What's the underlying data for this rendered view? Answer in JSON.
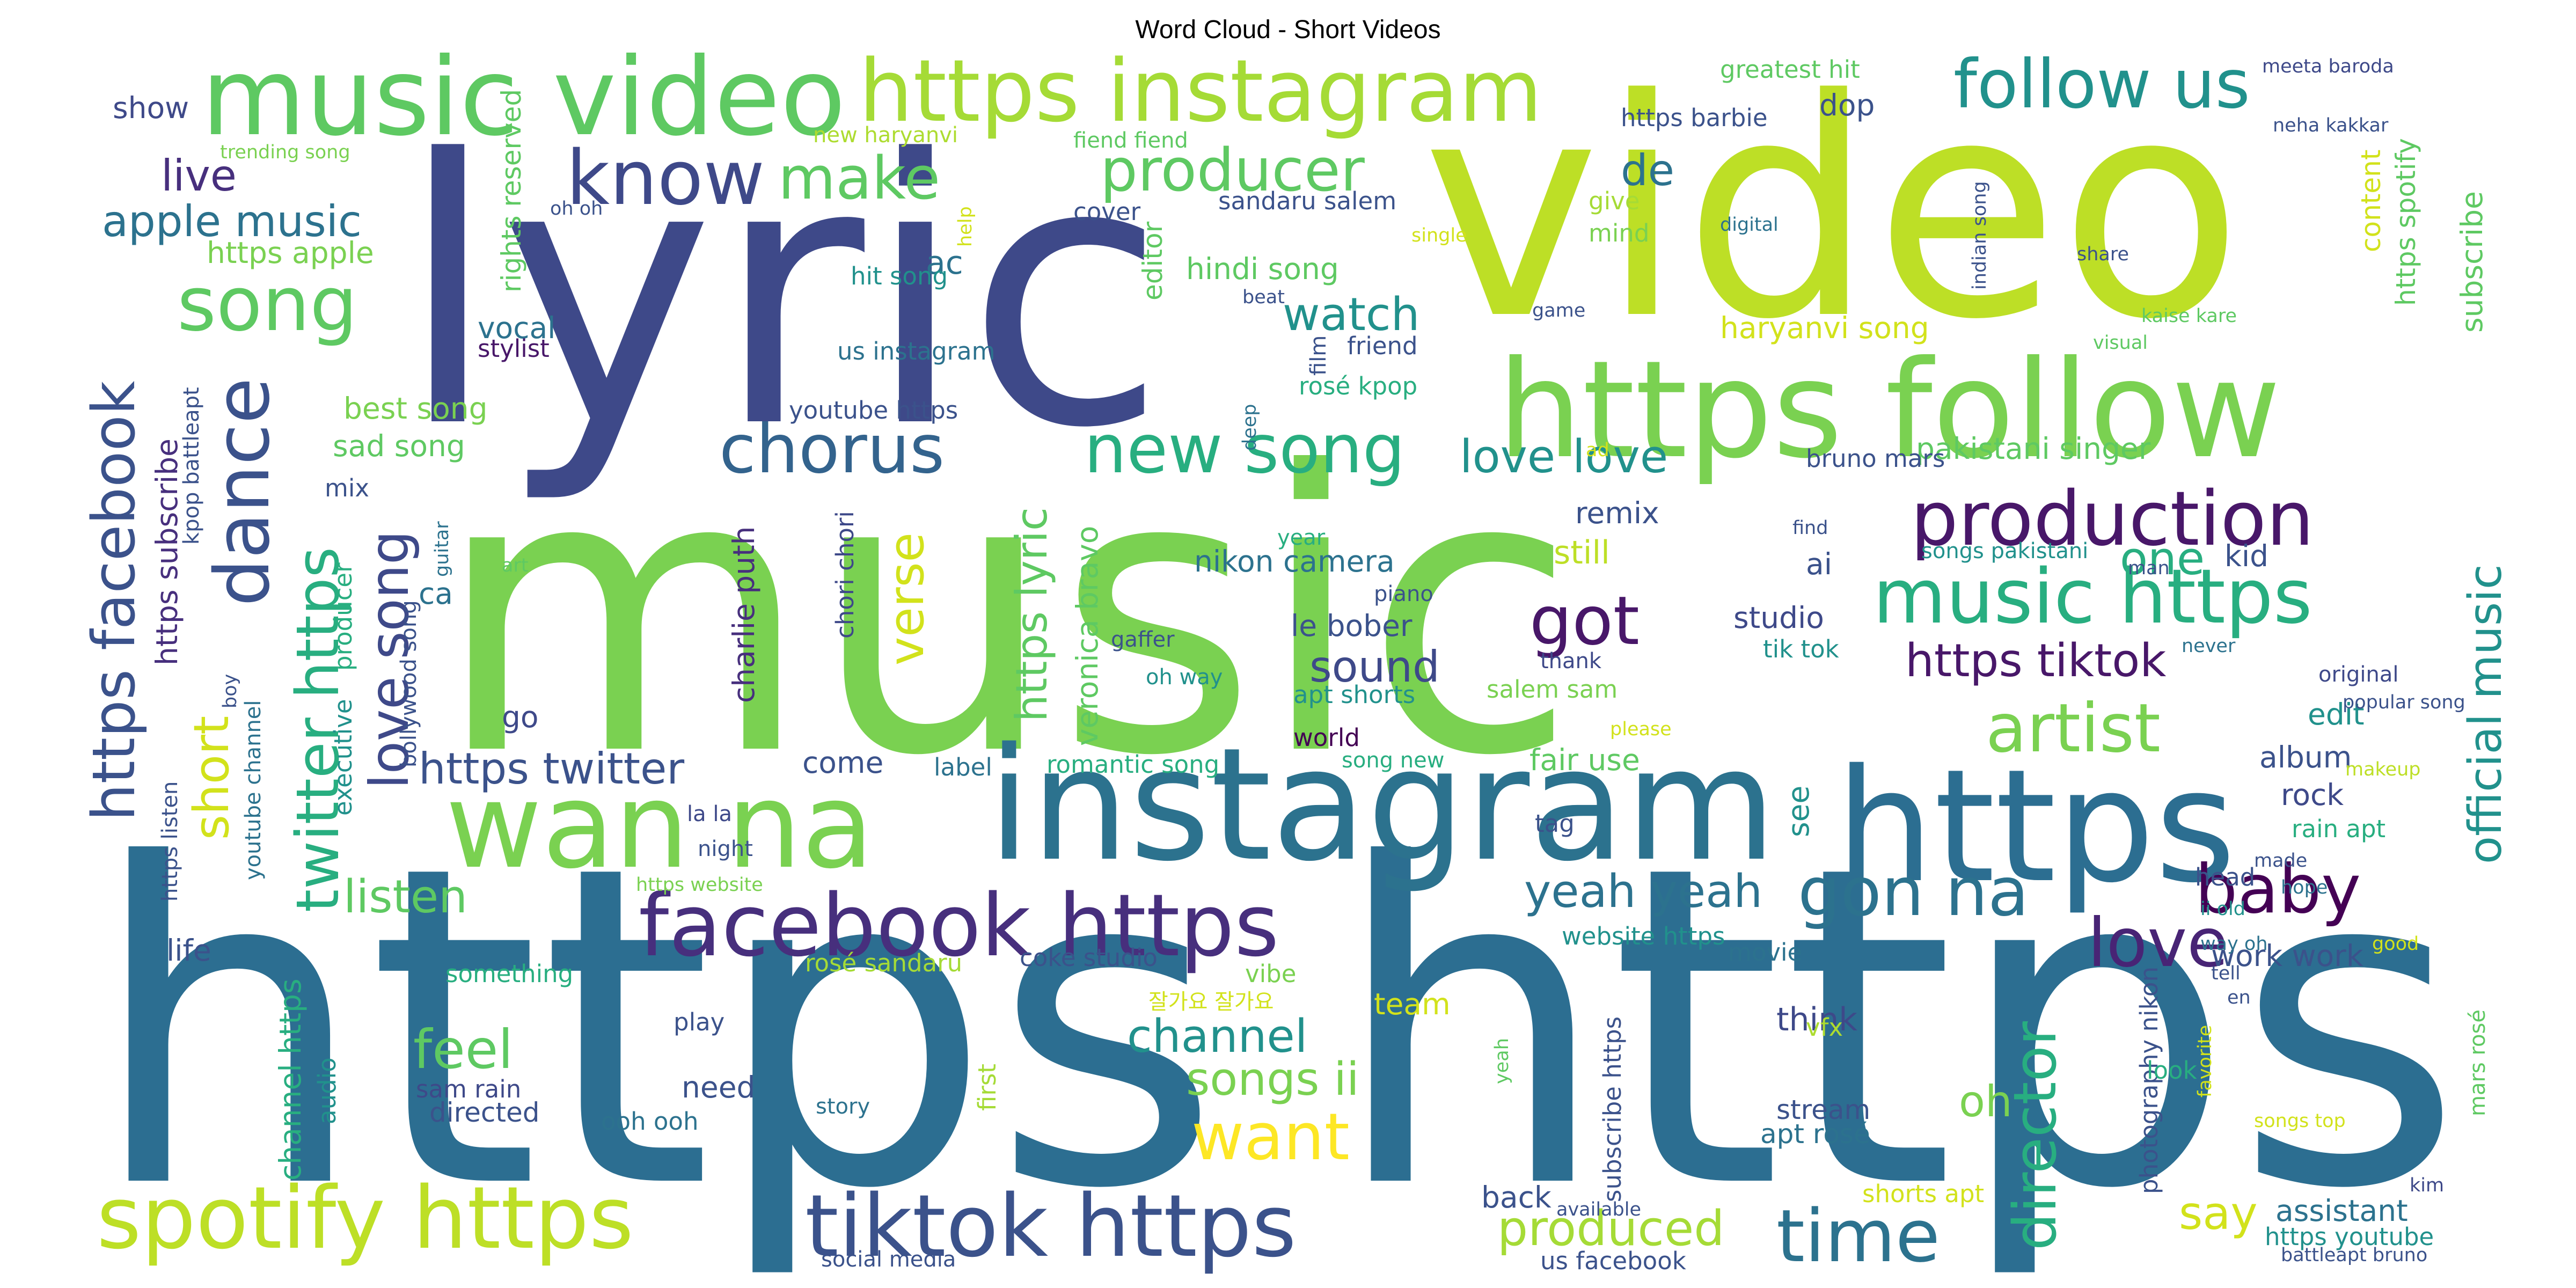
{
  "title": "Word Cloud - Short Videos",
  "palette": [
    "#440154",
    "#3b528b",
    "#2c728e",
    "#21918c",
    "#28ae80",
    "#5ec962",
    "#addc30",
    "#fde725"
  ],
  "words": [
    {
      "text": "https",
      "c": "#2c6e91"
    },
    {
      "text": "https",
      "c": "#2c6e91"
    },
    {
      "text": "music",
      "c": "#7ad151"
    },
    {
      "text": "lyric",
      "c": "#3e4989"
    },
    {
      "text": "video",
      "c": "#bddf26"
    },
    {
      "text": "instagram",
      "c": "#2c728e"
    },
    {
      "text": "https",
      "c": "#2c6e91"
    },
    {
      "text": "https follow",
      "c": "#7ad151"
    },
    {
      "text": "music video",
      "c": "#5ec962"
    },
    {
      "text": "https instagram",
      "c": "#a5db36"
    },
    {
      "text": "wan na",
      "c": "#7ad151"
    },
    {
      "text": "facebook https",
      "c": "#472f7d"
    },
    {
      "text": "tiktok https",
      "c": "#3b528b"
    },
    {
      "text": "spotify https",
      "c": "#bddf26"
    },
    {
      "text": "production",
      "c": "#481769"
    },
    {
      "text": "music https",
      "c": "#28ae80"
    },
    {
      "text": "know",
      "c": "#3e4989"
    },
    {
      "text": "song",
      "c": "#5ec962"
    },
    {
      "text": "dance",
      "c": "#3b528b"
    },
    {
      "text": "new song",
      "c": "#28ae80"
    },
    {
      "text": "chorus",
      "c": "#33638d"
    },
    {
      "text": "follow us",
      "c": "#21918c"
    },
    {
      "text": "producer",
      "c": "#5ec962"
    },
    {
      "text": "make",
      "c": "#5ec962"
    },
    {
      "text": "artist",
      "c": "#7ad151"
    },
    {
      "text": "time",
      "c": "#2c728e"
    },
    {
      "text": "gon na",
      "c": "#2c728e"
    },
    {
      "text": "love",
      "c": "#482475"
    },
    {
      "text": "baby",
      "c": "#440154"
    },
    {
      "text": "director",
      "c": "#28ae80"
    },
    {
      "text": "got",
      "c": "#481769"
    },
    {
      "text": "want",
      "c": "#fde725"
    },
    {
      "text": "twitter https",
      "c": "#28ae80"
    },
    {
      "text": "https facebook",
      "c": "#3b528b"
    },
    {
      "text": "https twitter",
      "c": "#3b528b"
    },
    {
      "text": "love song",
      "c": "#3e4989"
    },
    {
      "text": "https tiktok",
      "c": "#481769"
    },
    {
      "text": "yeah yeah",
      "c": "#2c728e"
    },
    {
      "text": "official music",
      "c": "#21918c"
    },
    {
      "text": "apple music",
      "c": "#2c728e"
    },
    {
      "text": "produced",
      "c": "#a5db36"
    },
    {
      "text": "https lyric",
      "c": "#5ec962"
    },
    {
      "text": "feel",
      "c": "#5ec962"
    },
    {
      "text": "channel",
      "c": "#21918c"
    },
    {
      "text": "songs ii",
      "c": "#7ad151"
    },
    {
      "text": "short",
      "c": "#d2e21b"
    },
    {
      "text": "listen",
      "c": "#5ec962"
    },
    {
      "text": "verse",
      "c": "#d2e21b"
    },
    {
      "text": "watch",
      "c": "#21918c"
    },
    {
      "text": "sound",
      "c": "#3e4989"
    },
    {
      "text": "live",
      "c": "#472f7d"
    },
    {
      "text": "de",
      "c": "#2c728e"
    },
    {
      "text": "love",
      "c": "#21918c"
    },
    {
      "text": "love",
      "c": "#21918c"
    },
    {
      "text": "one",
      "c": "#28ae80"
    },
    {
      "text": "oh",
      "c": "#7ad151"
    },
    {
      "text": "say",
      "c": "#d2e21b"
    },
    {
      "text": "hindi song",
      "c": "#5ec962"
    },
    {
      "text": "haryanvi song",
      "c": "#d2e21b"
    },
    {
      "text": "pakistani singer",
      "c": "#5ec962"
    },
    {
      "text": "nikon camera",
      "c": "#2c728e"
    },
    {
      "text": "le bober",
      "c": "#3b528b"
    },
    {
      "text": "veronica bravo",
      "c": "#5ec962"
    },
    {
      "text": "charlie puth",
      "c": "#472f7d"
    },
    {
      "text": "https subscribe",
      "c": "#472f7d"
    },
    {
      "text": "https apple",
      "c": "#7ad151"
    },
    {
      "text": "best song",
      "c": "#7ad151"
    },
    {
      "text": "sad song",
      "c": "#5ec962"
    },
    {
      "text": "vocal",
      "c": "#2c728e"
    },
    {
      "text": "stylist",
      "c": "#481769"
    },
    {
      "text": "remix",
      "c": "#3b528b"
    },
    {
      "text": "still",
      "c": "#bddf26"
    },
    {
      "text": "studio",
      "c": "#3e4989"
    },
    {
      "text": "ai",
      "c": "#3b528b"
    },
    {
      "text": "kid",
      "c": "#3b528b"
    },
    {
      "text": "edit",
      "c": "#21918c"
    },
    {
      "text": "album",
      "c": "#3b528b"
    },
    {
      "text": "rock",
      "c": "#3e4989"
    },
    {
      "text": "work work",
      "c": "#3b528b"
    },
    {
      "text": "assistant",
      "c": "#2c728e"
    },
    {
      "text": "think",
      "c": "#3e4989"
    },
    {
      "text": "stream",
      "c": "#3b528b"
    },
    {
      "text": "apt rosé",
      "c": "#2c728e"
    },
    {
      "text": "need",
      "c": "#3b528b"
    },
    {
      "text": "directed",
      "c": "#3b528b"
    },
    {
      "text": "sam rain",
      "c": "#3e4989"
    },
    {
      "text": "audio",
      "c": "#21918c"
    },
    {
      "text": "channel https",
      "c": "#28ae80"
    },
    {
      "text": "life",
      "c": "#3b528b"
    },
    {
      "text": "something",
      "c": "#28ae80"
    },
    {
      "text": "go",
      "c": "#3e4989"
    },
    {
      "text": "come",
      "c": "#3b528b"
    },
    {
      "text": "label",
      "c": "#2c728e"
    },
    {
      "text": "romantic song",
      "c": "#28ae80"
    },
    {
      "text": "fair use",
      "c": "#5ec962"
    },
    {
      "text": "see",
      "c": "#21918c"
    },
    {
      "text": "tag",
      "c": "#3b528b"
    },
    {
      "text": "team",
      "c": "#d2e21b"
    },
    {
      "text": "vibe",
      "c": "#7ad151"
    },
    {
      "text": "coke studio",
      "c": "#3b528b"
    },
    {
      "text": "rosé sandaru",
      "c": "#a5db36"
    },
    {
      "text": "website https",
      "c": "#21918c"
    },
    {
      "text": "movie",
      "c": "#2c728e"
    },
    {
      "text": "back",
      "c": "#3b528b"
    },
    {
      "text": "us facebook",
      "c": "#3b528b"
    },
    {
      "text": "vfx",
      "c": "#addc30"
    },
    {
      "text": "bruno mars",
      "c": "#3b528b"
    },
    {
      "text": "songs pakistani",
      "c": "#21918c"
    },
    {
      "text": "tik tok",
      "c": "#21918c"
    },
    {
      "text": "salem sam",
      "c": "#7ad151"
    },
    {
      "text": "apt shorts",
      "c": "#21918c"
    },
    {
      "text": "world",
      "c": "#440154"
    },
    {
      "text": "song new",
      "c": "#28ae80"
    },
    {
      "text": "thank",
      "c": "#3e4989"
    },
    {
      "text": "piano",
      "c": "#3b528b"
    },
    {
      "text": "year",
      "c": "#28ae80"
    },
    {
      "text": "rosé kpop",
      "c": "#28ae80"
    },
    {
      "text": "friend",
      "c": "#3b528b"
    },
    {
      "text": "film",
      "c": "#3b528b"
    },
    {
      "text": "deep",
      "c": "#2c728e"
    },
    {
      "text": "ad",
      "c": "#d2e21b"
    },
    {
      "text": "youtube https",
      "c": "#3b528b"
    },
    {
      "text": "us instagram",
      "c": "#2c728e"
    },
    {
      "text": "ac",
      "c": "#2c728e"
    },
    {
      "text": "hit song",
      "c": "#21918c"
    },
    {
      "text": "editor",
      "c": "#5ec962"
    },
    {
      "text": "cover",
      "c": "#3b528b"
    },
    {
      "text": "sandaru salem",
      "c": "#3b528b"
    },
    {
      "text": "fiend fiend",
      "c": "#5ec962"
    },
    {
      "text": "new haryanvi",
      "c": "#addc30"
    },
    {
      "text": "help",
      "c": "#d2e21b"
    },
    {
      "text": "single",
      "c": "#d2e21b"
    },
    {
      "text": "beat",
      "c": "#3b528b"
    },
    {
      "text": "game",
      "c": "#3b528b"
    },
    {
      "text": "give",
      "c": "#a5db36"
    },
    {
      "text": "mind",
      "c": "#7ad151"
    },
    {
      "text": "dop",
      "c": "#3b528b"
    },
    {
      "text": "https barbie",
      "c": "#3b528b"
    },
    {
      "text": "greatest hit",
      "c": "#5ec962"
    },
    {
      "text": "meeta baroda",
      "c": "#3e4989"
    },
    {
      "text": "neha kakkar",
      "c": "#3b528b"
    },
    {
      "text": "digital",
      "c": "#2c728e"
    },
    {
      "text": "indian song",
      "c": "#3b528b"
    },
    {
      "text": "share",
      "c": "#3b528b"
    },
    {
      "text": "content",
      "c": "#d2e21b"
    },
    {
      "text": "https spotify",
      "c": "#5ec962"
    },
    {
      "text": "subscribe",
      "c": "#5ec962"
    },
    {
      "text": "kaise kare",
      "c": "#5ec962"
    },
    {
      "text": "visual",
      "c": "#5ec962"
    },
    {
      "text": "show",
      "c": "#3e4989"
    },
    {
      "text": "trending song",
      "c": "#7ad151"
    },
    {
      "text": "oh oh",
      "c": "#3b528b"
    },
    {
      "text": "rights reserved",
      "c": "#5ec962"
    },
    {
      "text": "kpop battleapt",
      "c": "#3b528b"
    },
    {
      "text": "mix",
      "c": "#3b528b"
    },
    {
      "text": "ca",
      "c": "#2c728e"
    },
    {
      "text": "art",
      "c": "#5ec962"
    },
    {
      "text": "guitar",
      "c": "#2c728e"
    },
    {
      "text": "producer",
      "c": "#28ae80"
    },
    {
      "text": "executive",
      "c": "#21918c"
    },
    {
      "text": "bollywood song",
      "c": "#3b528b"
    },
    {
      "text": "youtube channel",
      "c": "#2c728e"
    },
    {
      "text": "boy",
      "c": "#3b528b"
    },
    {
      "text": "https listen",
      "c": "#3b528b"
    },
    {
      "text": "gaffer",
      "c": "#3b528b"
    },
    {
      "text": "oh way",
      "c": "#21918c"
    },
    {
      "text": "chori chori",
      "c": "#3e4989"
    },
    {
      "text": "la la",
      "c": "#3e4989"
    },
    {
      "text": "night",
      "c": "#3b528b"
    },
    {
      "text": "https website",
      "c": "#7ad151"
    },
    {
      "text": "ooh ooh",
      "c": "#2c728e"
    },
    {
      "text": "story",
      "c": "#2c728e"
    },
    {
      "text": "social media",
      "c": "#3b528b"
    },
    {
      "text": "play",
      "c": "#3b528b"
    },
    {
      "text": "first",
      "c": "#a5db36"
    },
    {
      "text": "잘가요 잘가요",
      "c": "#d2e21b"
    },
    {
      "text": "subscribe https",
      "c": "#3b528b"
    },
    {
      "text": "yeah",
      "c": "#5ec962"
    },
    {
      "text": "available",
      "c": "#3b528b"
    },
    {
      "text": "shorts apt",
      "c": "#d2e21b"
    },
    {
      "text": "please",
      "c": "#d2e21b"
    },
    {
      "text": "find",
      "c": "#3b528b"
    },
    {
      "text": "man",
      "c": "#3b528b"
    },
    {
      "text": "never",
      "c": "#2c728e"
    },
    {
      "text": "original",
      "c": "#3e4989"
    },
    {
      "text": "popular song",
      "c": "#3b528b"
    },
    {
      "text": "makeup",
      "c": "#bddf26"
    },
    {
      "text": "rain apt",
      "c": "#28ae80"
    },
    {
      "text": "made",
      "c": "#3b528b"
    },
    {
      "text": "head",
      "c": "#3b528b"
    },
    {
      "text": "ii old",
      "c": "#21918c"
    },
    {
      "text": "hope",
      "c": "#2c728e"
    },
    {
      "text": "good",
      "c": "#d2e21b"
    },
    {
      "text": "way oh",
      "c": "#2c728e"
    },
    {
      "text": "tell",
      "c": "#3b528b"
    },
    {
      "text": "en",
      "c": "#3b528b"
    },
    {
      "text": "photography nikon",
      "c": "#3b528b"
    },
    {
      "text": "favorite",
      "c": "#d2e21b"
    },
    {
      "text": "songs top",
      "c": "#d2e21b"
    },
    {
      "text": "look",
      "c": "#28ae80"
    },
    {
      "text": "mars rosé",
      "c": "#5ec962"
    },
    {
      "text": "kim",
      "c": "#3e4989"
    },
    {
      "text": "https youtube",
      "c": "#21918c"
    },
    {
      "text": "battleapt bruno",
      "c": "#3b528b"
    }
  ]
}
